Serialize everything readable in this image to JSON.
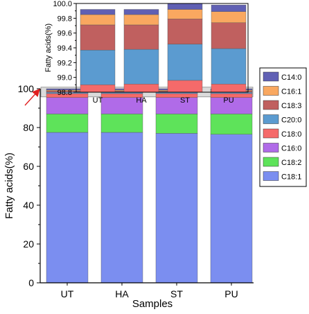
{
  "chart_data": [
    {
      "type": "bar",
      "stacked": true,
      "panel": "main",
      "categories": [
        "UT",
        "HA",
        "ST",
        "PU"
      ],
      "xlabel": "Samples",
      "ylabel": "Fatty acids(%)",
      "ylim": [
        0,
        100
      ],
      "yticks": [
        "0",
        "20",
        "40",
        "60",
        "80",
        "100"
      ],
      "series": [
        {
          "name": "C18:1",
          "color": "#7b8ef0",
          "values": [
            77.5,
            77.5,
            77.0,
            76.5
          ]
        },
        {
          "name": "C18:2",
          "color": "#5ee35a",
          "values": [
            9.5,
            9.5,
            10.0,
            10.5
          ]
        },
        {
          "name": "C16:0",
          "color": "#b06be8",
          "values": [
            8.5,
            8.5,
            8.5,
            8.5
          ]
        },
        {
          "name": "C18:0",
          "color": "#f56a6a",
          "values": [
            2.0,
            2.0,
            2.0,
            2.0
          ]
        },
        {
          "name": "C20:0",
          "color": "#5b9bd0",
          "values": [
            0.7,
            0.7,
            0.7,
            0.7
          ]
        },
        {
          "name": "C18:3",
          "color": "#c0605f",
          "values": [
            0.6,
            0.6,
            0.6,
            0.6
          ]
        },
        {
          "name": "C16:1",
          "color": "#f9a860",
          "values": [
            0.5,
            0.5,
            0.5,
            0.5
          ]
        },
        {
          "name": "C14:0",
          "color": "#6060b4",
          "values": [
            0.7,
            0.7,
            0.7,
            0.7
          ]
        }
      ],
      "highlight_range": [
        95.8,
        100.8
      ],
      "legend_position": "right"
    },
    {
      "type": "bar",
      "stacked": true,
      "panel": "inset",
      "categories": [
        "UT",
        "HA",
        "ST",
        "PU"
      ],
      "ylabel": "Fatty acids(%)",
      "ylim": [
        98.8,
        100.0
      ],
      "yticks": [
        "98.8",
        "99.0",
        "99.2",
        "99.4",
        "99.6",
        "99.8",
        "100.0"
      ],
      "segments": [
        {
          "name": "C18:0",
          "color": "#f56a6a",
          "base": 98.8,
          "tops": [
            98.9,
            98.91,
            98.96,
            98.91
          ]
        },
        {
          "name": "C20:0",
          "color": "#5b9bd0",
          "tops": [
            99.37,
            99.38,
            99.45,
            99.39
          ]
        },
        {
          "name": "C18:3",
          "color": "#c0605f",
          "tops": [
            99.71,
            99.71,
            99.79,
            99.74
          ]
        },
        {
          "name": "C16:1",
          "color": "#f9a860",
          "tops": [
            99.85,
            99.85,
            99.92,
            99.89
          ]
        },
        {
          "name": "C14:0",
          "color": "#6060b4",
          "tops": [
            99.92,
            99.92,
            100.0,
            99.98
          ]
        }
      ]
    }
  ],
  "legend": {
    "items": [
      {
        "label": "C14:0",
        "color": "#6060b4"
      },
      {
        "label": "C16:1",
        "color": "#f9a860"
      },
      {
        "label": "C18:3",
        "color": "#c0605f"
      },
      {
        "label": "C20:0",
        "color": "#5b9bd0"
      },
      {
        "label": "C18:0",
        "color": "#f56a6a"
      },
      {
        "label": "C16:0",
        "color": "#b06be8"
      },
      {
        "label": "C18:2",
        "color": "#5ee35a"
      },
      {
        "label": "C18:1",
        "color": "#7b8ef0"
      }
    ]
  }
}
